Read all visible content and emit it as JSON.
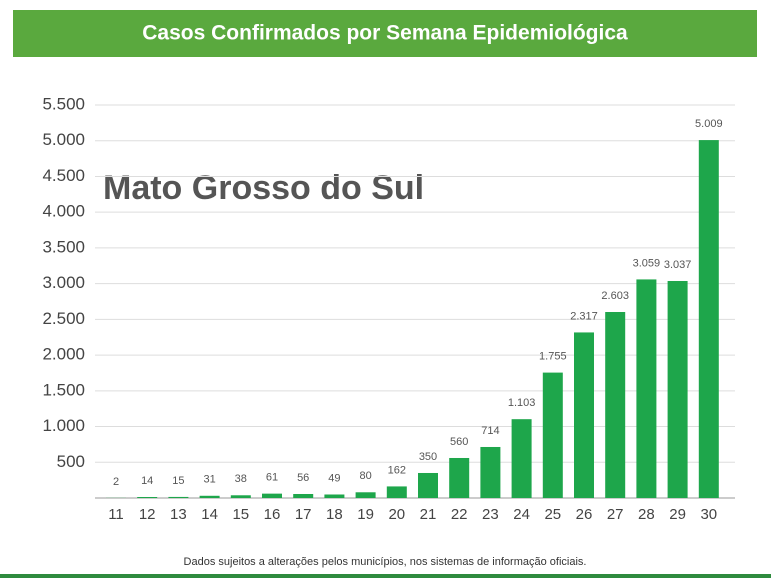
{
  "chart_data": {
    "type": "bar",
    "title": "Casos Confirmados por Semana Epidemiológica",
    "annotation": "Mato Grosso do Sul",
    "footnote": "Dados sujeitos a alterações pelos municípios, nos sistemas de informação oficiais.",
    "categories": [
      "11",
      "12",
      "13",
      "14",
      "15",
      "16",
      "17",
      "18",
      "19",
      "20",
      "21",
      "22",
      "23",
      "24",
      "25",
      "26",
      "27",
      "28",
      "29",
      "30"
    ],
    "values": [
      2,
      14,
      15,
      31,
      38,
      61,
      56,
      49,
      80,
      162,
      350,
      560,
      714,
      1103,
      1755,
      2317,
      2603,
      3059,
      3037,
      5009
    ],
    "value_labels": [
      "2",
      "14",
      "15",
      "31",
      "38",
      "61",
      "56",
      "49",
      "80",
      "162",
      "350",
      "560",
      "714",
      "1.103",
      "1.755",
      "2.317",
      "2.603",
      "3.059",
      "3.037",
      "5.009"
    ],
    "color": "#1ea64b",
    "ylim": [
      0,
      5500
    ],
    "yticks": [
      500,
      {
        "value": 1000,
        "label": "1.000"
      },
      {
        "value": 1500,
        "label": "1.500"
      },
      {
        "value": 2000,
        "label": "2.000"
      },
      {
        "value": 2500,
        "label": "2.500"
      },
      {
        "value": 3000,
        "label": "3.000"
      },
      {
        "value": 3500,
        "label": "3.500"
      },
      {
        "value": 4000,
        "label": "4.000"
      },
      {
        "value": 4500,
        "label": "4.500"
      },
      {
        "value": 5000,
        "label": "5.000"
      },
      {
        "value": 5500,
        "label": "5.500"
      }
    ],
    "grid": true
  }
}
